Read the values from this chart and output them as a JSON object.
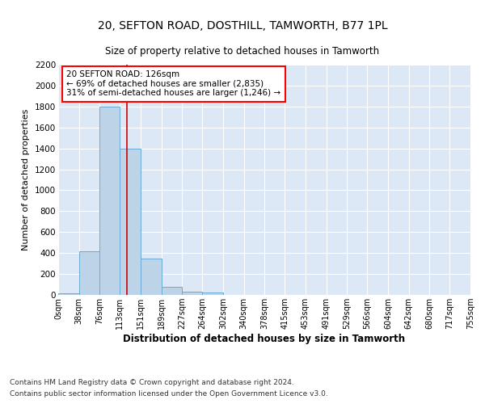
{
  "title": "20, SEFTON ROAD, DOSTHILL, TAMWORTH, B77 1PL",
  "subtitle": "Size of property relative to detached houses in Tamworth",
  "xlabel": "Distribution of detached houses by size in Tamworth",
  "ylabel": "Number of detached properties",
  "footer_line1": "Contains HM Land Registry data © Crown copyright and database right 2024.",
  "footer_line2": "Contains public sector information licensed under the Open Government Licence v3.0.",
  "annotation_title": "20 SEFTON ROAD: 126sqm",
  "annotation_line2": "← 69% of detached houses are smaller (2,835)",
  "annotation_line3": "31% of semi-detached houses are larger (1,246) →",
  "property_size": 126,
  "bin_edges": [
    0,
    38,
    76,
    113,
    151,
    189,
    227,
    264,
    302,
    340,
    378,
    415,
    453,
    491,
    529,
    566,
    604,
    642,
    680,
    717,
    755
  ],
  "bar_values": [
    15,
    420,
    1800,
    1400,
    350,
    80,
    30,
    20,
    0,
    0,
    0,
    0,
    0,
    0,
    0,
    0,
    0,
    0,
    0,
    0
  ],
  "bar_color": "#bdd4e8",
  "bar_edgecolor": "#6aaad4",
  "vline_color": "#cc0000",
  "vline_x": 126,
  "background_color": "#dce8f5",
  "ylim": [
    0,
    2200
  ],
  "yticks": [
    0,
    200,
    400,
    600,
    800,
    1000,
    1200,
    1400,
    1600,
    1800,
    2000,
    2200
  ],
  "figsize": [
    6.0,
    5.0
  ],
  "dpi": 100
}
